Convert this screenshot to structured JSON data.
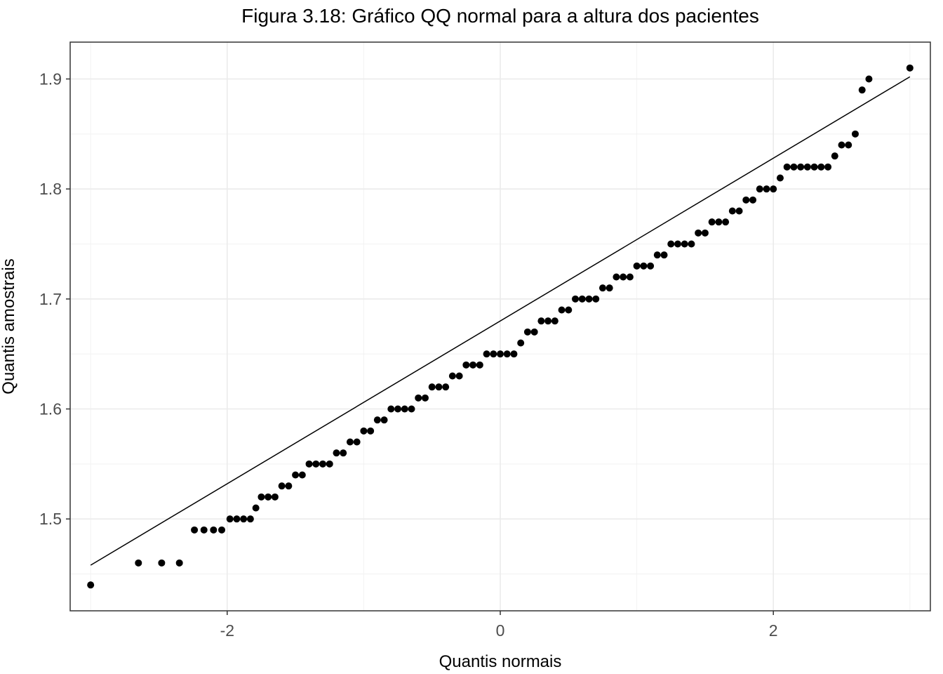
{
  "chart_data": {
    "type": "scatter",
    "title": "Figura 3.18: Gráfico QQ normal para a altura dos pacientes",
    "xlabel": "Quantis normais",
    "ylabel": "Quantis amostrais",
    "xlim": [
      -3.15,
      3.15
    ],
    "ylim": [
      1.4165,
      1.9335
    ],
    "x_ticks": [
      -2,
      0,
      2
    ],
    "x_tick_labels": [
      "-2",
      "0",
      "2"
    ],
    "y_ticks": [
      1.5,
      1.6,
      1.7,
      1.8,
      1.9
    ],
    "y_tick_labels": [
      "1.5",
      "1.6",
      "1.7",
      "1.8",
      "1.9"
    ],
    "grid": true,
    "reference_line": {
      "x": [
        -3.0,
        3.0
      ],
      "y": [
        1.458,
        1.902
      ]
    },
    "series": [
      {
        "points": [
          [
            -3.0,
            1.44
          ],
          [
            -2.65,
            1.46
          ],
          [
            -2.48,
            1.46
          ],
          [
            -2.35,
            1.46
          ],
          [
            -2.24,
            1.49
          ],
          [
            -2.17,
            1.49
          ],
          [
            -2.1,
            1.49
          ],
          [
            -2.04,
            1.49
          ],
          [
            -1.98,
            1.5
          ],
          [
            -1.93,
            1.5
          ],
          [
            -1.88,
            1.5
          ],
          [
            -1.83,
            1.5
          ],
          [
            -1.79,
            1.51
          ],
          [
            -1.75,
            1.52
          ],
          [
            -1.7,
            1.52
          ],
          [
            -1.65,
            1.52
          ],
          [
            -1.6,
            1.53
          ],
          [
            -1.55,
            1.53
          ],
          [
            -1.5,
            1.54
          ],
          [
            -1.45,
            1.54
          ],
          [
            -1.4,
            1.55
          ],
          [
            -1.35,
            1.55
          ],
          [
            -1.3,
            1.55
          ],
          [
            -1.25,
            1.55
          ],
          [
            -1.2,
            1.56
          ],
          [
            -1.15,
            1.56
          ],
          [
            -1.1,
            1.57
          ],
          [
            -1.05,
            1.57
          ],
          [
            -1.0,
            1.58
          ],
          [
            -0.95,
            1.58
          ],
          [
            -0.9,
            1.59
          ],
          [
            -0.85,
            1.59
          ],
          [
            -0.8,
            1.6
          ],
          [
            -0.75,
            1.6
          ],
          [
            -0.7,
            1.6
          ],
          [
            -0.65,
            1.6
          ],
          [
            -0.6,
            1.61
          ],
          [
            -0.55,
            1.61
          ],
          [
            -0.5,
            1.62
          ],
          [
            -0.45,
            1.62
          ],
          [
            -0.4,
            1.62
          ],
          [
            -0.35,
            1.63
          ],
          [
            -0.3,
            1.63
          ],
          [
            -0.25,
            1.64
          ],
          [
            -0.2,
            1.64
          ],
          [
            -0.15,
            1.64
          ],
          [
            -0.1,
            1.65
          ],
          [
            -0.05,
            1.65
          ],
          [
            0.0,
            1.65
          ],
          [
            0.05,
            1.65
          ],
          [
            0.1,
            1.65
          ],
          [
            0.15,
            1.66
          ],
          [
            0.2,
            1.67
          ],
          [
            0.25,
            1.67
          ],
          [
            0.3,
            1.68
          ],
          [
            0.35,
            1.68
          ],
          [
            0.4,
            1.68
          ],
          [
            0.45,
            1.69
          ],
          [
            0.5,
            1.69
          ],
          [
            0.55,
            1.7
          ],
          [
            0.6,
            1.7
          ],
          [
            0.65,
            1.7
          ],
          [
            0.7,
            1.7
          ],
          [
            0.75,
            1.71
          ],
          [
            0.8,
            1.71
          ],
          [
            0.85,
            1.72
          ],
          [
            0.9,
            1.72
          ],
          [
            0.95,
            1.72
          ],
          [
            1.0,
            1.73
          ],
          [
            1.05,
            1.73
          ],
          [
            1.1,
            1.73
          ],
          [
            1.15,
            1.74
          ],
          [
            1.2,
            1.74
          ],
          [
            1.25,
            1.75
          ],
          [
            1.3,
            1.75
          ],
          [
            1.35,
            1.75
          ],
          [
            1.4,
            1.75
          ],
          [
            1.45,
            1.76
          ],
          [
            1.5,
            1.76
          ],
          [
            1.55,
            1.77
          ],
          [
            1.6,
            1.77
          ],
          [
            1.65,
            1.77
          ],
          [
            1.7,
            1.78
          ],
          [
            1.75,
            1.78
          ],
          [
            1.8,
            1.79
          ],
          [
            1.85,
            1.79
          ],
          [
            1.9,
            1.8
          ],
          [
            1.95,
            1.8
          ],
          [
            2.0,
            1.8
          ],
          [
            2.05,
            1.81
          ],
          [
            2.1,
            1.82
          ],
          [
            2.15,
            1.82
          ],
          [
            2.2,
            1.82
          ],
          [
            2.25,
            1.82
          ],
          [
            2.3,
            1.82
          ],
          [
            2.35,
            1.82
          ],
          [
            2.4,
            1.82
          ],
          [
            2.45,
            1.83
          ],
          [
            2.5,
            1.84
          ],
          [
            2.55,
            1.84
          ],
          [
            2.6,
            1.85
          ],
          [
            2.65,
            1.89
          ],
          [
            2.7,
            1.9
          ],
          [
            3.0,
            1.91
          ]
        ]
      }
    ]
  }
}
